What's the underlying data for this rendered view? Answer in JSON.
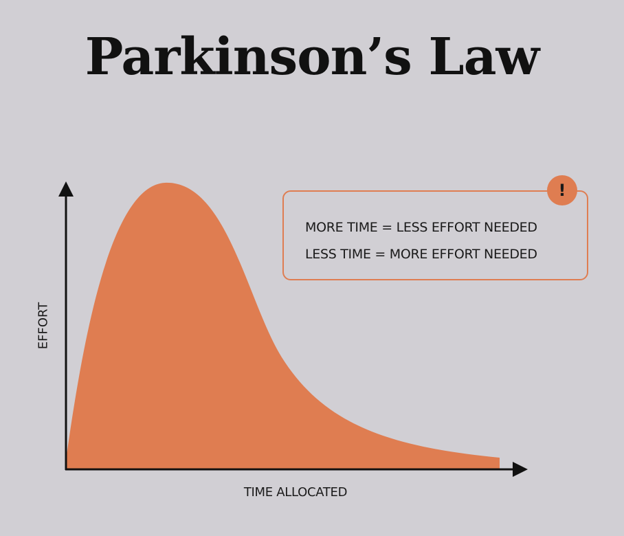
{
  "title": "Parkinson’s Law",
  "callout": {
    "line1": "MORE TIME = LESS EFFORT NEEDED",
    "line2": "LESS TIME = MORE EFFORT NEEDED",
    "badge": "!"
  },
  "axes": {
    "xlabel": "TIME ALLOCATED",
    "ylabel": "EFFORT"
  },
  "colors": {
    "background": "#d1cfd4",
    "accent": "#df7d51",
    "ink": "#111111"
  }
}
